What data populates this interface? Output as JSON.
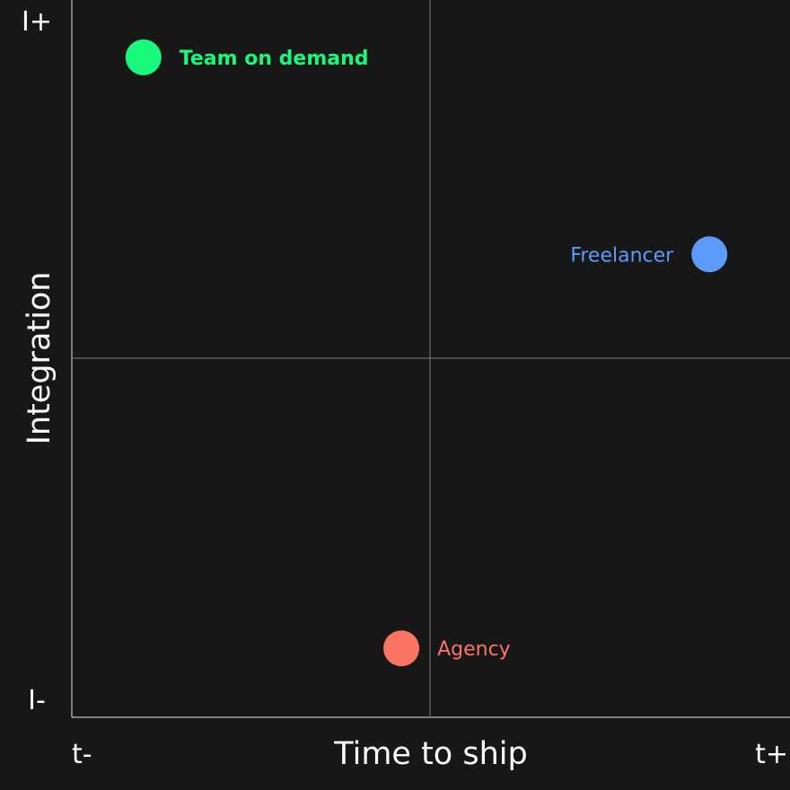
{
  "chart_data": {
    "type": "scatter",
    "xlabel": "Time to ship",
    "ylabel": "Integration",
    "x_tick_labels": {
      "min": "t-",
      "max": "t+"
    },
    "y_tick_labels": {
      "min": "I-",
      "max": "I+"
    },
    "xlim": [
      0,
      1
    ],
    "ylim": [
      0,
      1
    ],
    "grid": false,
    "quadrant_lines": {
      "x": 0.5,
      "y": 0.5
    },
    "points": [
      {
        "label": "Team on demand",
        "x": 0.1,
        "y": 0.92,
        "color": "#17fb7b",
        "label_side": "right",
        "bold": true
      },
      {
        "label": "Freelancer",
        "x": 0.89,
        "y": 0.645,
        "color": "#5d9bfb",
        "label_side": "left",
        "bold": false
      },
      {
        "label": "Agency",
        "x": 0.46,
        "y": 0.095,
        "color": "#fb7464",
        "label_side": "right",
        "bold": false
      }
    ]
  },
  "colors": {
    "background": "#171717",
    "axis": "#e6e6e6",
    "quadrant_line": "#6b6b6b",
    "text": "#ffffff"
  }
}
